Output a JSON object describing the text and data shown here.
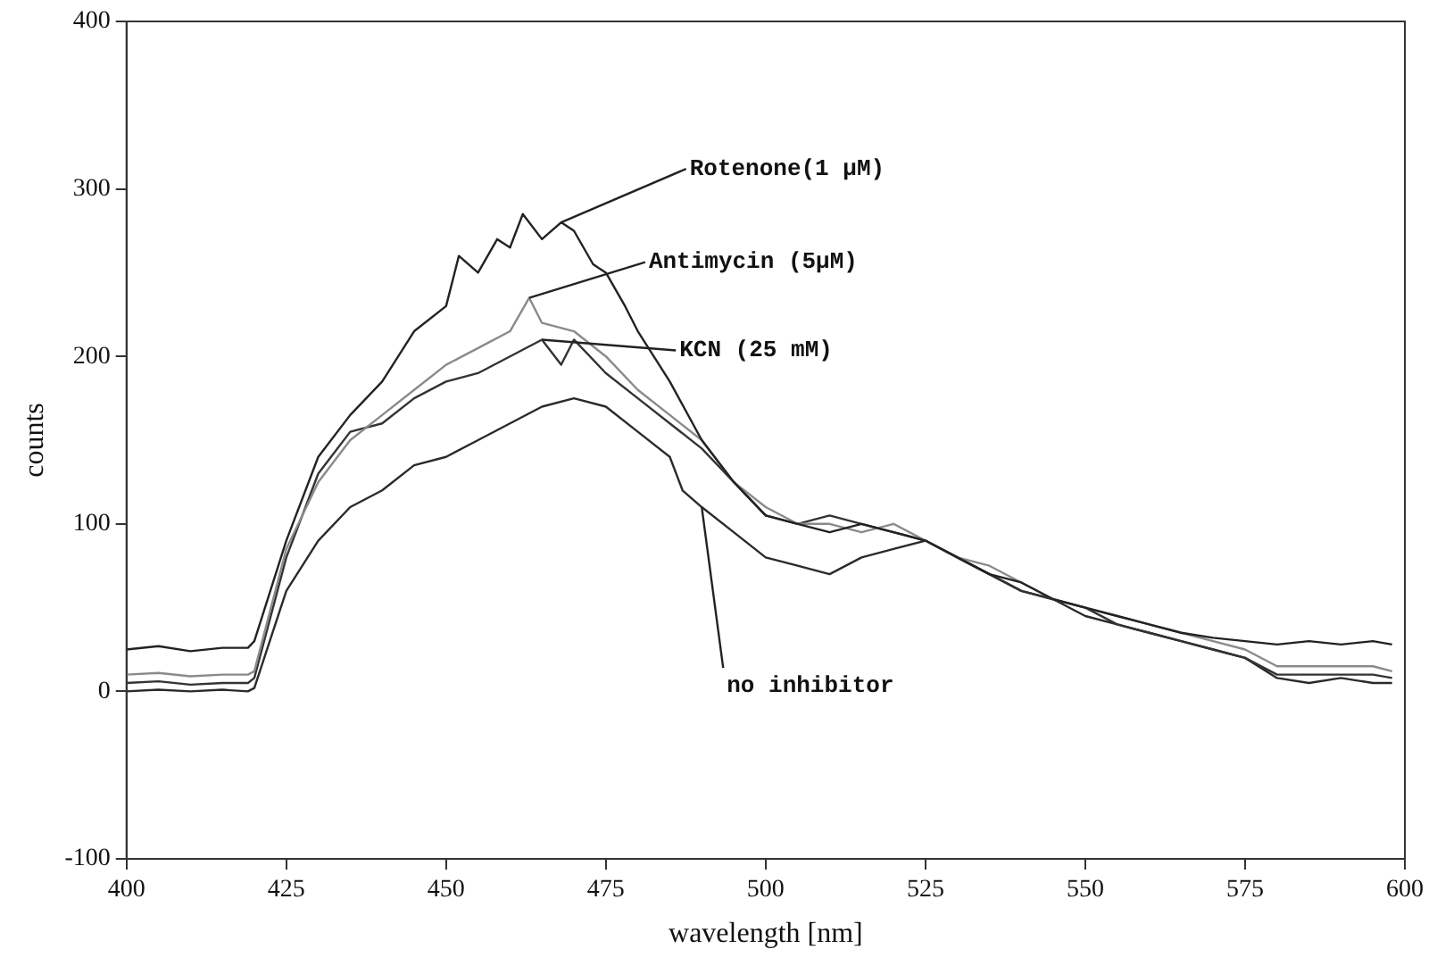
{
  "chart_data": {
    "type": "line",
    "xlabel": "wavelength [nm]",
    "ylabel": "counts",
    "xlim": [
      400,
      600
    ],
    "xticks": [
      400,
      425,
      450,
      475,
      500,
      525,
      550,
      575,
      600
    ],
    "ylim": [
      -100,
      400
    ],
    "yticks": [
      -100,
      0,
      100,
      200,
      300,
      400
    ],
    "grid": false,
    "legend": false,
    "marker": "none",
    "line_style": "solid",
    "series": [
      {
        "color": "#222222",
        "x": [
          400,
          405,
          410,
          415,
          419,
          420,
          425,
          430,
          435,
          440,
          445,
          450,
          452,
          455,
          458,
          460,
          462,
          465,
          468,
          470,
          473,
          475,
          478,
          480,
          485,
          490,
          495,
          500,
          505,
          510,
          515,
          520,
          525,
          530,
          535,
          540,
          545,
          550,
          555,
          560,
          565,
          570,
          575,
          580,
          585,
          590,
          595,
          598
        ],
        "values": [
          25,
          27,
          24,
          26,
          26,
          30,
          90,
          140,
          165,
          185,
          215,
          230,
          260,
          250,
          270,
          265,
          285,
          270,
          280,
          275,
          255,
          250,
          230,
          215,
          185,
          150,
          125,
          105,
          100,
          95,
          100,
          95,
          90,
          80,
          70,
          65,
          55,
          50,
          45,
          40,
          35,
          32,
          30,
          28,
          30,
          28,
          30,
          28
        ]
      },
      {
        "color": "#8a8a8a",
        "x": [
          400,
          405,
          410,
          415,
          419,
          420,
          425,
          430,
          435,
          440,
          445,
          450,
          455,
          460,
          463,
          465,
          470,
          475,
          480,
          485,
          490,
          495,
          500,
          505,
          510,
          515,
          520,
          525,
          530,
          535,
          540,
          545,
          550,
          555,
          560,
          565,
          570,
          575,
          580,
          585,
          590,
          595,
          598
        ],
        "values": [
          10,
          11,
          9,
          10,
          10,
          12,
          85,
          125,
          150,
          165,
          180,
          195,
          205,
          215,
          235,
          220,
          215,
          200,
          180,
          165,
          150,
          125,
          110,
          100,
          100,
          95,
          100,
          90,
          80,
          75,
          65,
          55,
          50,
          45,
          40,
          35,
          30,
          25,
          15,
          15,
          15,
          15,
          12
        ]
      },
      {
        "color": "#333333",
        "x": [
          400,
          405,
          410,
          415,
          419,
          420,
          425,
          430,
          435,
          440,
          445,
          450,
          455,
          460,
          465,
          468,
          470,
          475,
          480,
          485,
          490,
          495,
          500,
          505,
          510,
          515,
          520,
          525,
          530,
          535,
          540,
          545,
          550,
          555,
          560,
          565,
          570,
          575,
          580,
          585,
          590,
          595,
          598
        ],
        "values": [
          5,
          6,
          4,
          5,
          5,
          8,
          80,
          130,
          155,
          160,
          175,
          185,
          190,
          200,
          210,
          195,
          210,
          190,
          175,
          160,
          145,
          125,
          105,
          100,
          105,
          100,
          95,
          90,
          80,
          70,
          60,
          55,
          50,
          40,
          35,
          30,
          25,
          20,
          10,
          10,
          10,
          10,
          8
        ]
      },
      {
        "color": "#2a2a2a",
        "x": [
          400,
          405,
          410,
          415,
          419,
          420,
          425,
          430,
          435,
          440,
          445,
          450,
          455,
          460,
          465,
          470,
          475,
          480,
          485,
          487,
          490,
          495,
          500,
          505,
          510,
          515,
          520,
          525,
          530,
          535,
          540,
          545,
          550,
          555,
          560,
          565,
          570,
          575,
          580,
          585,
          590,
          595,
          598
        ],
        "values": [
          0,
          1,
          0,
          1,
          0,
          2,
          60,
          90,
          110,
          120,
          135,
          140,
          150,
          160,
          170,
          175,
          170,
          155,
          140,
          120,
          110,
          95,
          80,
          75,
          70,
          80,
          85,
          90,
          80,
          70,
          60,
          55,
          45,
          40,
          35,
          30,
          25,
          20,
          8,
          5,
          8,
          5,
          5
        ]
      }
    ],
    "annotations": [
      {
        "text": "Rotenone(1 µM)",
        "x": 468,
        "y": 280
      },
      {
        "text": "Antimycin (5µM)",
        "x": 463,
        "y": 235
      },
      {
        "text": "KCN (25 mM)",
        "x": 465,
        "y": 210
      },
      {
        "text": "no inhibitor",
        "x": 490,
        "y": 110
      }
    ]
  }
}
